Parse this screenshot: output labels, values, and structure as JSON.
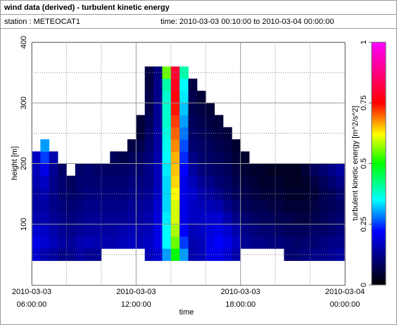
{
  "chart_data": {
    "type": "heatmap",
    "title": "wind data (derived) - turbulent kinetic energy",
    "station": "station : METEOCAT1",
    "time_range": "time: 2010-03-03 00:10:00 to 2010-03-04 00:00:00",
    "xlabel": "time",
    "ylabel": "height [m]",
    "colorbar_label": "turbulent kinetic energy [m^2/s^2]",
    "xlim": [
      6,
      24
    ],
    "xticks": [
      {
        "value": 6,
        "label": [
          "2010-03-03",
          "06:00:00"
        ]
      },
      {
        "value": 12,
        "label": [
          "2010-03-03",
          "12:00:00"
        ]
      },
      {
        "value": 18,
        "label": [
          "2010-03-03",
          "18:00:00"
        ]
      },
      {
        "value": 24,
        "label": [
          "2010-03-04",
          "00:00:00"
        ]
      }
    ],
    "minor_xticks": [
      8,
      10,
      14,
      16,
      20,
      22
    ],
    "ylim": [
      0,
      400
    ],
    "yticks": [
      100,
      200,
      300,
      400
    ],
    "minor_yticks": [
      50,
      150,
      250,
      350
    ],
    "clim": [
      0,
      1
    ],
    "cticks": [
      0,
      0.25,
      0.5,
      0.75,
      1
    ],
    "grid": true,
    "colorscale": [
      [
        0,
        "#000000"
      ],
      [
        0.1,
        "#000070"
      ],
      [
        0.22,
        "#0000ff"
      ],
      [
        0.35,
        "#00ffff"
      ],
      [
        0.5,
        "#00ff00"
      ],
      [
        0.62,
        "#ffff00"
      ],
      [
        0.75,
        "#ff0000"
      ],
      [
        1,
        "#ff00ff"
      ]
    ],
    "x_edges": [
      6,
      6.5,
      7,
      7.5,
      8,
      8.5,
      9,
      9.5,
      10,
      10.5,
      11,
      11.5,
      12,
      12.5,
      13,
      13.5,
      14,
      14.5,
      15,
      15.5,
      16,
      16.5,
      17,
      17.5,
      18,
      18.5,
      19,
      19.5,
      20,
      20.5,
      21,
      21.5,
      22,
      22.5,
      23,
      23.5,
      24
    ],
    "y_edges": [
      0,
      20,
      40,
      60,
      80,
      100,
      120,
      140,
      160,
      180,
      200,
      220,
      240,
      260,
      280,
      300,
      320,
      340,
      360,
      380,
      400
    ],
    "z": [
      [
        null,
        null,
        0.18,
        0.2,
        0.18,
        0.15,
        0.14,
        0.14,
        0.15,
        0.16,
        0.17,
        null,
        null,
        null,
        null,
        null,
        null,
        null,
        null,
        null
      ],
      [
        null,
        null,
        0.15,
        0.18,
        0.17,
        0.15,
        0.14,
        0.15,
        0.17,
        0.2,
        0.25,
        0.3,
        null,
        null,
        null,
        null,
        null,
        null,
        null,
        null
      ],
      [
        null,
        null,
        0.14,
        0.16,
        0.15,
        0.13,
        0.12,
        0.12,
        0.12,
        0.13,
        0.15,
        null,
        null,
        null,
        null,
        null,
        null,
        null,
        null,
        null
      ],
      [
        null,
        null,
        0.12,
        0.14,
        0.13,
        0.12,
        0.11,
        0.1,
        0.1,
        0.09,
        null,
        null,
        null,
        null,
        null,
        null,
        null,
        null,
        null,
        null
      ],
      [
        null,
        null,
        0.12,
        0.13,
        0.12,
        0.11,
        0.1,
        0.09,
        0.08,
        null,
        null,
        null,
        null,
        null,
        null,
        null,
        null,
        null,
        null,
        null
      ],
      [
        null,
        null,
        0.14,
        0.15,
        0.13,
        0.12,
        0.11,
        0.1,
        0.1,
        0.09,
        null,
        null,
        null,
        null,
        null,
        null,
        null,
        null,
        null,
        null
      ],
      [
        null,
        null,
        0.13,
        0.16,
        0.14,
        0.13,
        0.12,
        0.11,
        0.1,
        0.1,
        null,
        null,
        null,
        null,
        null,
        null,
        null,
        null,
        null,
        null
      ],
      [
        null,
        null,
        0.13,
        0.15,
        0.14,
        0.13,
        0.12,
        0.11,
        0.1,
        0.09,
        null,
        null,
        null,
        null,
        null,
        null,
        null,
        null,
        null,
        null
      ],
      [
        null,
        null,
        null,
        0.15,
        0.14,
        0.13,
        0.12,
        0.11,
        0.1,
        0.09,
        null,
        null,
        null,
        null,
        null,
        null,
        null,
        null,
        null,
        null
      ],
      [
        null,
        null,
        null,
        0.15,
        0.14,
        0.13,
        0.12,
        0.11,
        0.1,
        0.09,
        0.08,
        null,
        null,
        null,
        null,
        null,
        null,
        null,
        null,
        null
      ],
      [
        null,
        null,
        null,
        0.16,
        0.15,
        0.13,
        0.12,
        0.11,
        0.1,
        0.09,
        0.07,
        null,
        null,
        null,
        null,
        null,
        null,
        null,
        null,
        null
      ],
      [
        null,
        null,
        null,
        0.17,
        0.16,
        0.14,
        0.13,
        0.12,
        0.11,
        0.1,
        0.08,
        0.06,
        null,
        null,
        null,
        null,
        null,
        null,
        null,
        null
      ],
      [
        null,
        null,
        null,
        0.16,
        0.15,
        0.14,
        0.13,
        0.12,
        0.11,
        0.1,
        0.09,
        0.07,
        0.05,
        0.05,
        null,
        null,
        null,
        null,
        null,
        null
      ],
      [
        null,
        null,
        0.16,
        0.17,
        0.16,
        0.15,
        0.14,
        0.13,
        0.12,
        0.12,
        0.11,
        0.1,
        0.09,
        0.08,
        0.07,
        0.07,
        0.06,
        0.06,
        null,
        null
      ],
      [
        null,
        null,
        0.18,
        0.2,
        0.2,
        0.19,
        0.18,
        0.17,
        0.16,
        0.16,
        0.15,
        0.14,
        0.14,
        0.13,
        0.13,
        0.12,
        0.12,
        0.11,
        null,
        null
      ],
      [
        null,
        null,
        0.3,
        0.35,
        0.35,
        0.34,
        0.33,
        0.33,
        0.33,
        0.34,
        0.35,
        0.36,
        0.37,
        0.38,
        0.38,
        0.38,
        0.4,
        0.55,
        null,
        null
      ],
      [
        null,
        null,
        0.5,
        0.55,
        0.58,
        0.6,
        0.6,
        0.62,
        0.64,
        0.65,
        0.66,
        0.68,
        0.7,
        0.72,
        0.74,
        0.76,
        0.78,
        0.8,
        null,
        null
      ],
      [
        null,
        null,
        0.3,
        0.25,
        0.22,
        0.2,
        0.2,
        0.2,
        0.2,
        0.22,
        0.24,
        0.26,
        0.28,
        0.3,
        0.32,
        0.34,
        0.35,
        0.4,
        null,
        null
      ],
      [
        null,
        null,
        0.15,
        0.15,
        0.16,
        0.17,
        0.17,
        0.18,
        0.16,
        0.14,
        0.12,
        0.1,
        0.09,
        0.08,
        0.07,
        0.07,
        0.06,
        null,
        null,
        null
      ],
      [
        null,
        null,
        0.16,
        0.16,
        0.17,
        0.17,
        0.16,
        0.15,
        0.13,
        0.11,
        0.1,
        0.09,
        0.08,
        0.07,
        0.06,
        0.05,
        null,
        null,
        null,
        null
      ],
      [
        null,
        null,
        0.2,
        0.2,
        0.19,
        0.18,
        0.16,
        0.14,
        0.12,
        0.1,
        0.09,
        0.08,
        0.07,
        0.06,
        0.05,
        null,
        null,
        null,
        null,
        null
      ],
      [
        null,
        null,
        0.2,
        0.22,
        0.2,
        0.18,
        0.15,
        0.12,
        0.1,
        0.09,
        0.08,
        0.07,
        0.06,
        0.05,
        null,
        null,
        null,
        null,
        null,
        null
      ],
      [
        null,
        null,
        0.18,
        0.2,
        0.18,
        0.15,
        0.12,
        0.1,
        0.09,
        0.08,
        0.07,
        0.06,
        0.05,
        null,
        null,
        null,
        null,
        null,
        null,
        null
      ],
      [
        null,
        null,
        0.15,
        0.17,
        0.15,
        0.12,
        0.1,
        0.08,
        0.07,
        0.06,
        0.05,
        0.04,
        null,
        null,
        null,
        null,
        null,
        null,
        null,
        null
      ],
      [
        null,
        null,
        null,
        0.13,
        0.12,
        0.1,
        0.08,
        0.07,
        0.06,
        0.05,
        0.04,
        null,
        null,
        null,
        null,
        null,
        null,
        null,
        null,
        null
      ],
      [
        null,
        null,
        null,
        0.12,
        0.11,
        0.09,
        0.07,
        0.06,
        0.05,
        0.04,
        null,
        null,
        null,
        null,
        null,
        null,
        null,
        null,
        null,
        null
      ],
      [
        null,
        null,
        null,
        0.12,
        0.1,
        0.08,
        0.07,
        0.05,
        0.04,
        0.04,
        null,
        null,
        null,
        null,
        null,
        null,
        null,
        null,
        null,
        null
      ],
      [
        null,
        null,
        null,
        0.11,
        0.1,
        0.08,
        0.06,
        0.05,
        0.04,
        0.03,
        null,
        null,
        null,
        null,
        null,
        null,
        null,
        null,
        null,
        null
      ],
      [
        null,
        null,
        null,
        0.11,
        0.09,
        0.07,
        0.06,
        0.05,
        0.04,
        0.03,
        null,
        null,
        null,
        null,
        null,
        null,
        null,
        null,
        null,
        null
      ],
      [
        null,
        null,
        0.1,
        0.1,
        0.08,
        0.07,
        0.05,
        0.04,
        0.03,
        0.03,
        null,
        null,
        null,
        null,
        null,
        null,
        null,
        null,
        null,
        null
      ],
      [
        null,
        null,
        0.1,
        0.09,
        0.08,
        0.06,
        0.05,
        0.04,
        0.03,
        0.03,
        null,
        null,
        null,
        null,
        null,
        null,
        null,
        null,
        null,
        null
      ],
      [
        null,
        null,
        0.11,
        0.1,
        0.08,
        0.06,
        0.05,
        0.04,
        0.04,
        0.05,
        null,
        null,
        null,
        null,
        null,
        null,
        null,
        null,
        null,
        null
      ],
      [
        null,
        null,
        0.12,
        0.1,
        0.09,
        0.07,
        0.06,
        0.05,
        0.06,
        0.08,
        null,
        null,
        null,
        null,
        null,
        null,
        null,
        null,
        null,
        null
      ],
      [
        null,
        null,
        0.12,
        0.11,
        0.09,
        0.08,
        0.07,
        0.07,
        0.08,
        0.1,
        null,
        null,
        null,
        null,
        null,
        null,
        null,
        null,
        null,
        null
      ],
      [
        null,
        null,
        0.13,
        0.12,
        0.1,
        0.09,
        0.08,
        0.08,
        0.1,
        0.12,
        null,
        null,
        null,
        null,
        null,
        null,
        null,
        null,
        null,
        null
      ],
      [
        null,
        null,
        0.14,
        0.12,
        0.11,
        0.1,
        0.09,
        0.1,
        0.12,
        0.14,
        null,
        null,
        null,
        null,
        null,
        null,
        null,
        null,
        null,
        null
      ]
    ]
  }
}
